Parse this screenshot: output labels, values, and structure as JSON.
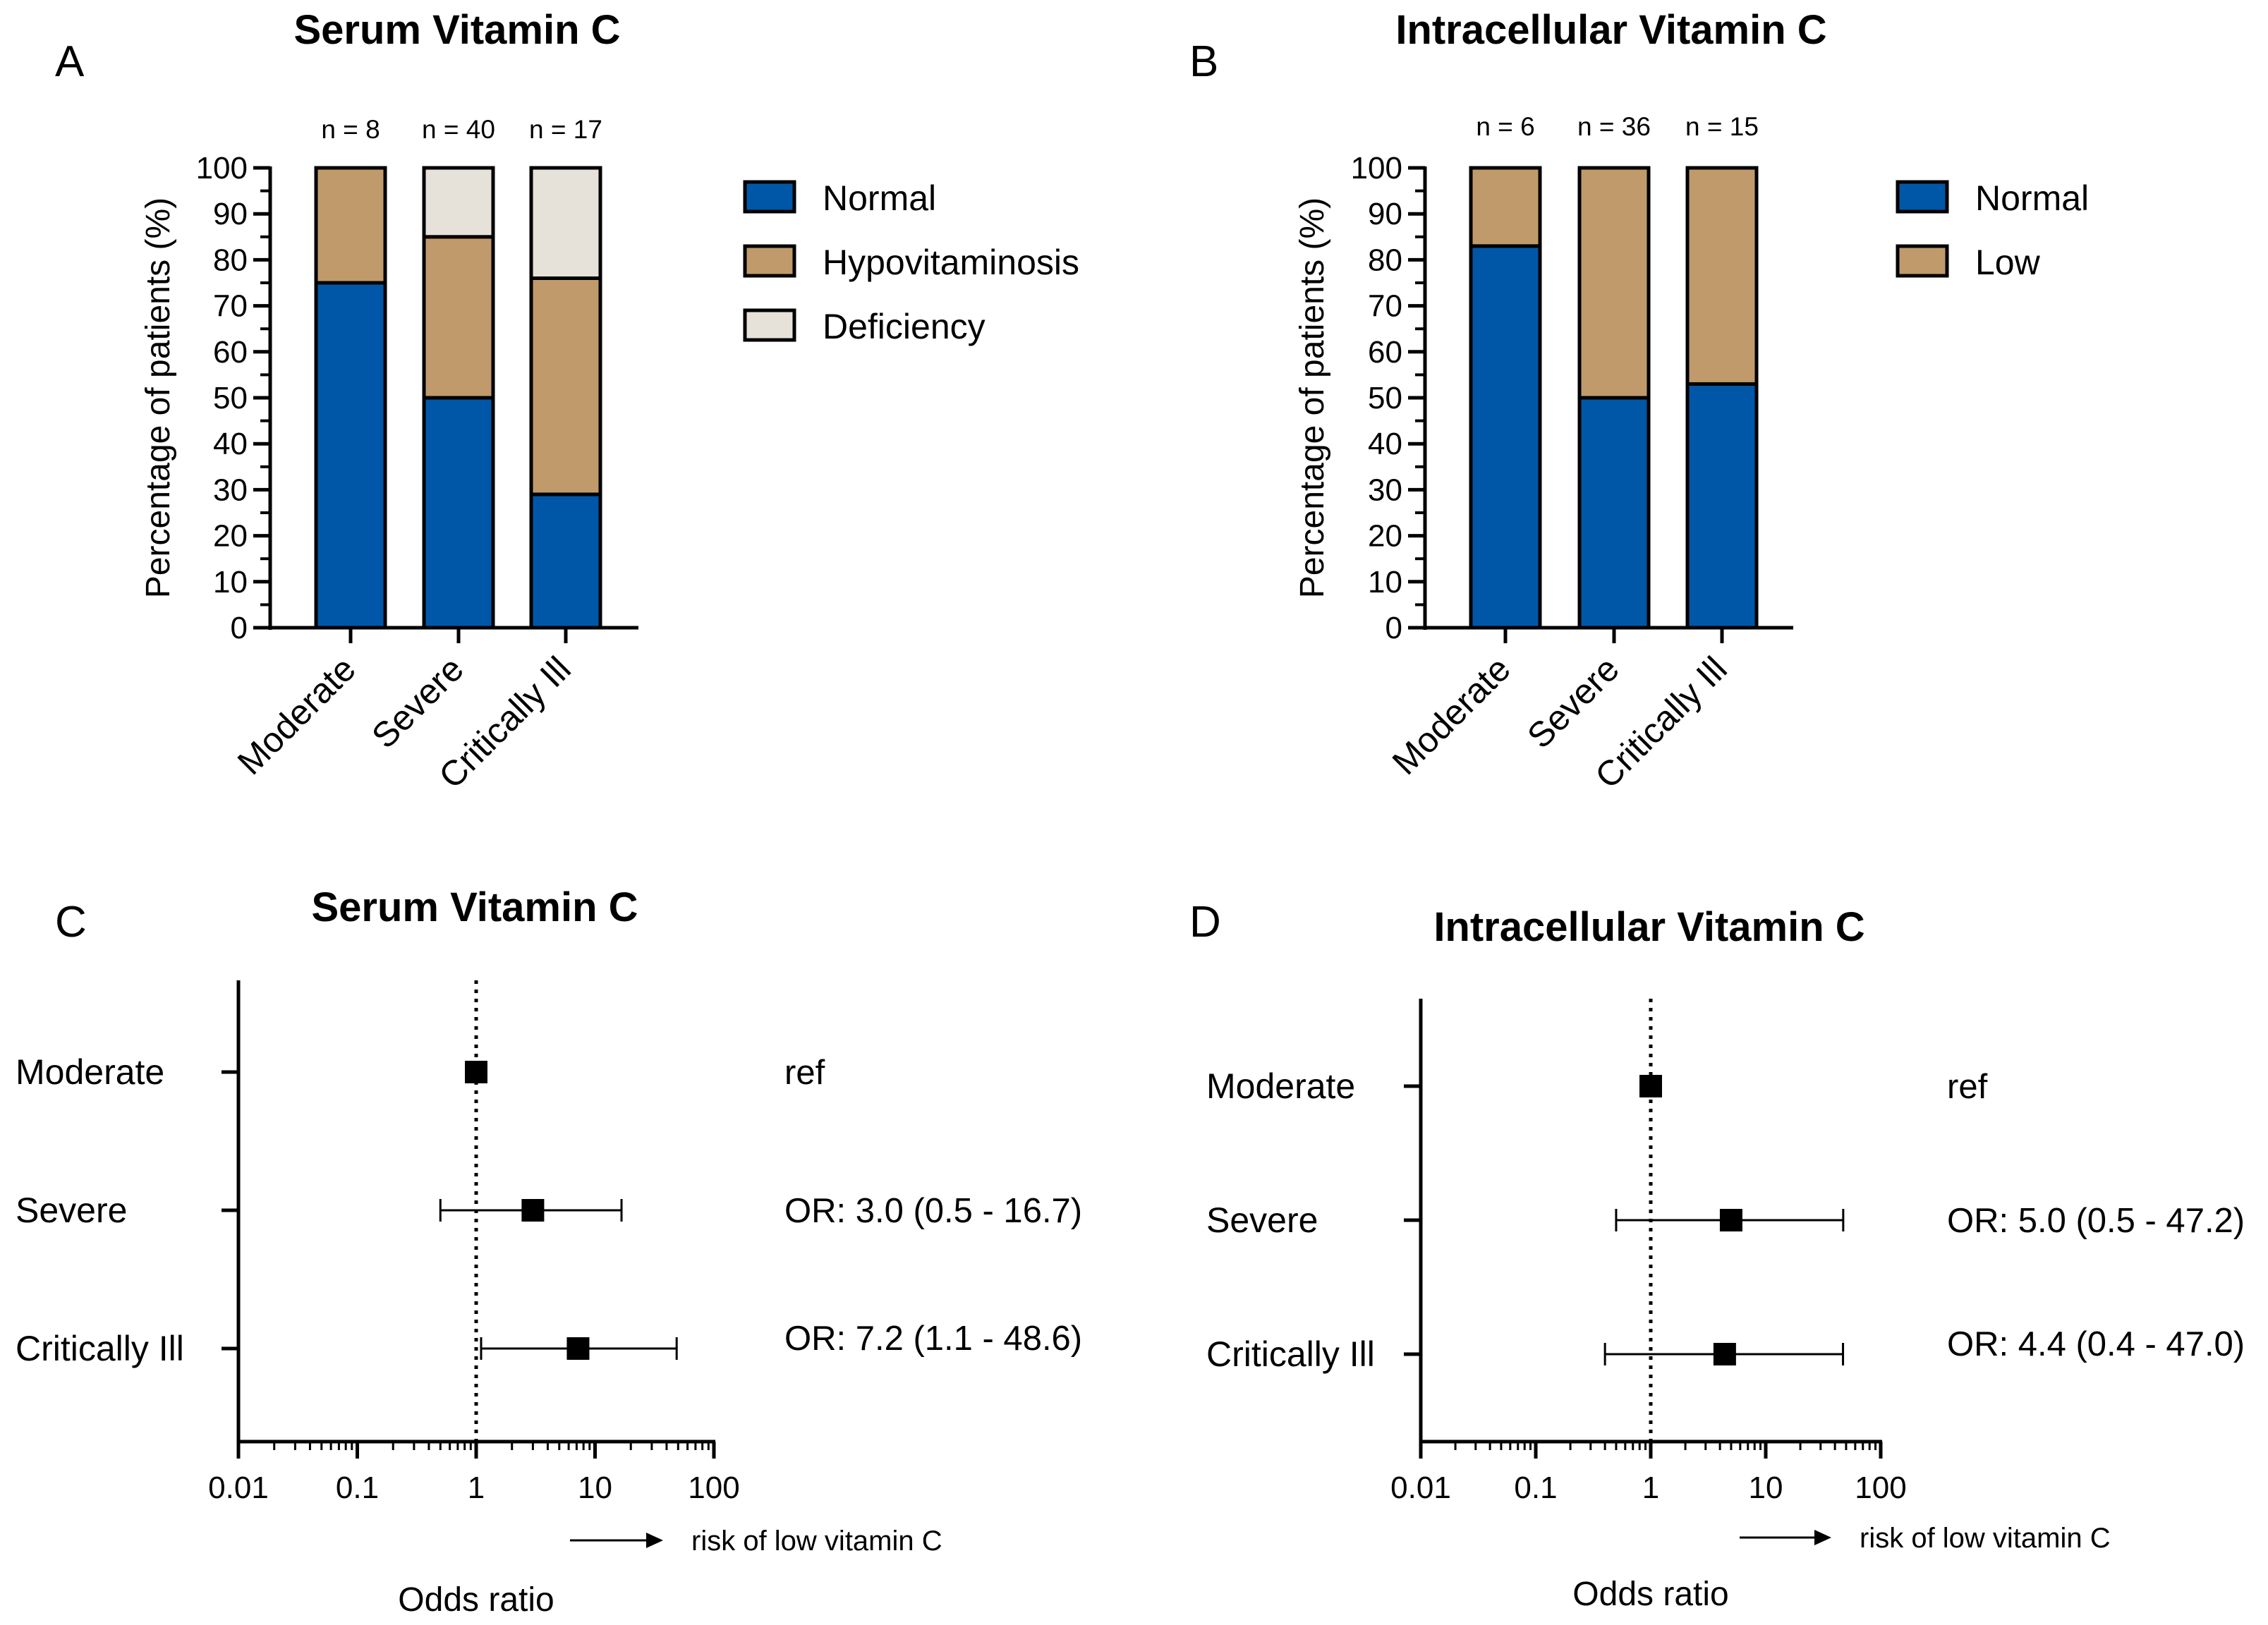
{
  "colors": {
    "normal": "#0057a8",
    "hypovitaminosis": "#c09a6b",
    "low": "#c09a6b",
    "deficiency": "#e6e2d9",
    "line": "#000000"
  },
  "chart_data": [
    {
      "panel": "A",
      "type": "bar",
      "stacked": true,
      "title": "Serum Vitamin C",
      "categories": [
        "Moderate",
        "Severe",
        "Critically Ill"
      ],
      "n_labels": [
        "n = 8",
        "n = 40",
        "n = 17"
      ],
      "ylabel": "Percentage of patients (%)",
      "ylim": [
        0,
        100
      ],
      "yticks": [
        "0",
        "10",
        "20",
        "30",
        "40",
        "50",
        "60",
        "70",
        "80",
        "90",
        "100"
      ],
      "legend_position": "right",
      "series": [
        {
          "name": "Normal",
          "color_key": "normal",
          "values": [
            75,
            50,
            29
          ]
        },
        {
          "name": "Hypovitaminosis",
          "color_key": "hypovitaminosis",
          "values": [
            25,
            35,
            47
          ]
        },
        {
          "name": "Deficiency",
          "color_key": "deficiency",
          "values": [
            0,
            15,
            24
          ]
        }
      ]
    },
    {
      "panel": "B",
      "type": "bar",
      "stacked": true,
      "title": "Intracellular Vitamin C",
      "categories": [
        "Moderate",
        "Severe",
        "Critically Ill"
      ],
      "n_labels": [
        "n = 6",
        "n = 36",
        "n = 15"
      ],
      "ylabel": "Percentage of patients (%)",
      "ylim": [
        0,
        100
      ],
      "yticks": [
        "0",
        "10",
        "20",
        "30",
        "40",
        "50",
        "60",
        "70",
        "80",
        "90",
        "100"
      ],
      "legend_position": "right",
      "series": [
        {
          "name": "Normal",
          "color_key": "normal",
          "values": [
            83,
            50,
            53
          ]
        },
        {
          "name": "Low",
          "color_key": "low",
          "values": [
            17,
            50,
            47
          ]
        }
      ]
    },
    {
      "panel": "C",
      "type": "scatter",
      "subtype": "forest",
      "title": "Serum Vitamin C",
      "xlabel": "Odds ratio",
      "xscale": "log",
      "xlim": [
        0.01,
        100
      ],
      "xticks": [
        "0.01",
        "0.1",
        "1",
        "10",
        "100"
      ],
      "reference_line": 1,
      "arrow_label": "risk of low vitamin C",
      "rows": [
        {
          "category": "Moderate",
          "or": 1.0,
          "ci": null,
          "label": "ref"
        },
        {
          "category": "Severe",
          "or": 3.0,
          "ci": [
            0.5,
            16.7
          ],
          "label": "OR: 3.0 (0.5 - 16.7)"
        },
        {
          "category": "Critically Ill",
          "or": 7.2,
          "ci": [
            1.1,
            48.6
          ],
          "label": "OR: 7.2 (1.1 - 48.6)"
        }
      ]
    },
    {
      "panel": "D",
      "type": "scatter",
      "subtype": "forest",
      "title": "Intracellular Vitamin C",
      "xlabel": "Odds ratio",
      "xscale": "log",
      "xlim": [
        0.01,
        100
      ],
      "xticks": [
        "0.01",
        "0.1",
        "1",
        "10",
        "100"
      ],
      "reference_line": 1,
      "arrow_label": "risk of low vitamin C",
      "rows": [
        {
          "category": "Moderate",
          "or": 1.0,
          "ci": null,
          "label": "ref"
        },
        {
          "category": "Severe",
          "or": 5.0,
          "ci": [
            0.5,
            47.2
          ],
          "label": "OR: 5.0 (0.5 - 47.2)"
        },
        {
          "category": "Critically Ill",
          "or": 4.4,
          "ci": [
            0.4,
            47.0
          ],
          "label": "OR: 4.4 (0.4 - 47.0)"
        }
      ]
    }
  ]
}
